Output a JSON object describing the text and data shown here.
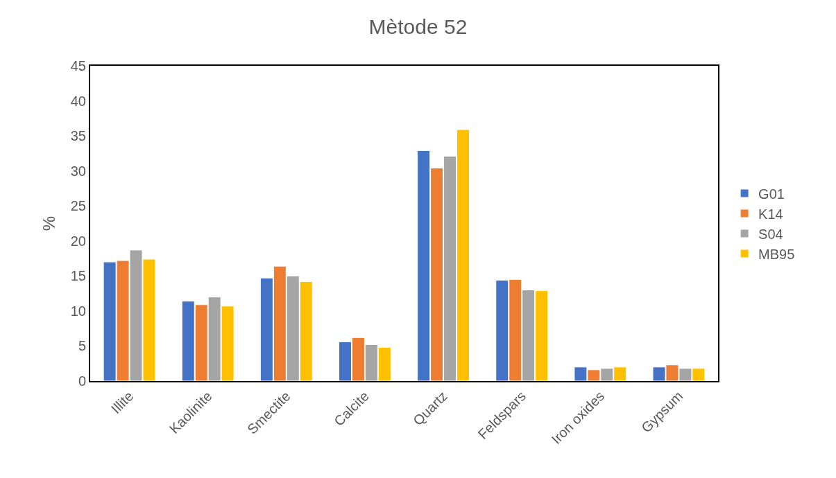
{
  "chart_data": {
    "type": "bar",
    "title": "Mètode 52",
    "ylabel": "%",
    "categories": [
      "Illite",
      "Kaolinite",
      "Smectite",
      "Calcite",
      "Quartz",
      "Feldspars",
      "Iron oxides",
      "Gypsum"
    ],
    "series": [
      {
        "name": "G01",
        "color": "#4472c4",
        "values": [
          17.0,
          11.4,
          14.7,
          5.6,
          32.9,
          14.4,
          2.0,
          2.0
        ]
      },
      {
        "name": "K14",
        "color": "#ed7d31",
        "values": [
          17.2,
          10.9,
          16.4,
          6.2,
          30.4,
          14.5,
          1.6,
          2.3
        ]
      },
      {
        "name": "S04",
        "color": "#a5a5a5",
        "values": [
          18.7,
          12.0,
          15.0,
          5.2,
          32.1,
          13.0,
          1.8,
          1.8
        ]
      },
      {
        "name": "MB95",
        "color": "#ffc000",
        "values": [
          17.4,
          10.7,
          14.2,
          4.8,
          35.9,
          12.9,
          2.0,
          1.8
        ]
      }
    ],
    "ylim": [
      0,
      45
    ],
    "yticks": [
      0,
      5,
      10,
      15,
      20,
      25,
      30,
      35,
      40,
      45
    ],
    "grid": false,
    "legend": "right"
  }
}
